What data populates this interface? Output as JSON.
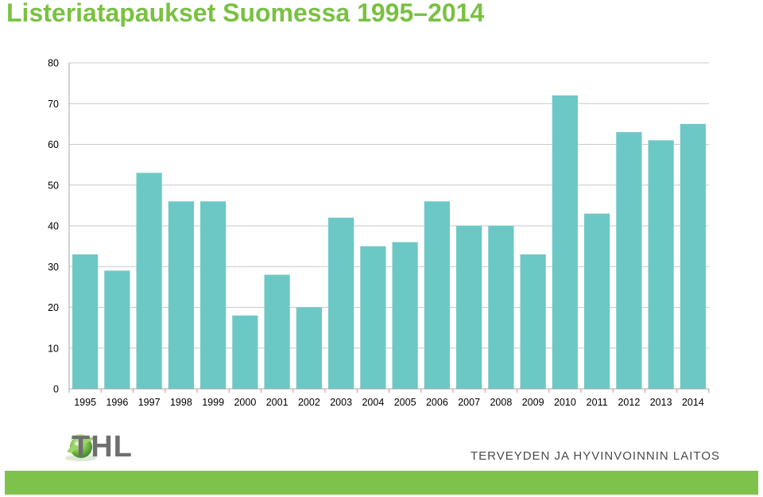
{
  "slide": {
    "title": "Listeriatapaukset Suomessa 1995–2014"
  },
  "chart_data": {
    "type": "bar",
    "title": "",
    "xlabel": "",
    "ylabel": "",
    "categories": [
      "1995",
      "1996",
      "1997",
      "1998",
      "1999",
      "2000",
      "2001",
      "2002",
      "2003",
      "2004",
      "2005",
      "2006",
      "2007",
      "2008",
      "2009",
      "2010",
      "2011",
      "2012",
      "2013",
      "2014"
    ],
    "values": [
      33,
      29,
      53,
      46,
      46,
      18,
      28,
      20,
      42,
      35,
      36,
      46,
      40,
      40,
      33,
      72,
      43,
      63,
      61,
      65
    ],
    "ylim": [
      0,
      80
    ],
    "yticks": [
      0,
      10,
      20,
      30,
      40,
      50,
      60,
      70,
      80
    ],
    "grid": true,
    "bar_color": "#6cc8c5",
    "grid_color": "#c8c8c8"
  },
  "footer": {
    "logo_text": "THL",
    "logo_icon": "thl-leaf-globe-icon",
    "org_name": "TERVEYDEN JA HYVINVOINNIN LAITOS",
    "bar_color": "#7fc24b"
  }
}
